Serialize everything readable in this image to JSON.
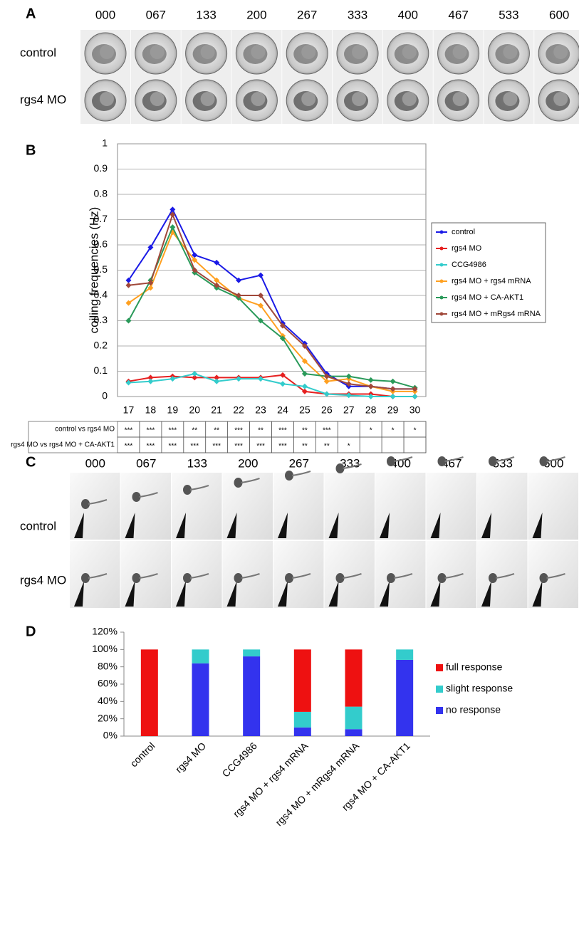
{
  "panel_a": {
    "label": "A",
    "times": [
      "000",
      "067",
      "133",
      "200",
      "267",
      "333",
      "400",
      "467",
      "533",
      "600"
    ],
    "rows": [
      "control",
      "rgs4 MO"
    ]
  },
  "panel_b": {
    "label": "B"
  },
  "panel_c": {
    "label": "C",
    "times": [
      "000",
      "067",
      "133",
      "200",
      "267",
      "333",
      "400",
      "467",
      "533",
      "600"
    ],
    "rows": [
      "control",
      "rgs4 MO"
    ]
  },
  "panel_d": {
    "label": "D"
  },
  "chart_data": [
    {
      "type": "line",
      "y_label": "coiling frequencies (Hz)",
      "categories": [
        17,
        18,
        19,
        20,
        21,
        22,
        23,
        24,
        25,
        26,
        27,
        28,
        29,
        30
      ],
      "ylim": [
        0,
        1
      ],
      "yticks": [
        0,
        0.1,
        0.2,
        0.3,
        0.4,
        0.5,
        0.6,
        0.7,
        0.8,
        0.9,
        1
      ],
      "grid": true,
      "legend": "right",
      "series": [
        {
          "name": "control",
          "color": "#1a1ae6",
          "values": [
            0.46,
            0.59,
            0.74,
            0.56,
            0.53,
            0.46,
            0.48,
            0.29,
            0.21,
            0.09,
            0.04,
            0.04,
            0.03,
            0.03
          ]
        },
        {
          "name": "rgs4 MO",
          "color": "#e62020",
          "values": [
            0.06,
            0.075,
            0.08,
            0.075,
            0.075,
            0.075,
            0.075,
            0.085,
            0.02,
            0.01,
            0.01,
            0.01,
            0.0,
            0.0
          ]
        },
        {
          "name": "CCG4986",
          "color": "#33cccc",
          "values": [
            0.055,
            0.06,
            0.07,
            0.09,
            0.06,
            0.07,
            0.07,
            0.05,
            0.04,
            0.01,
            0.005,
            0.0,
            0.0,
            0.0
          ]
        },
        {
          "name": "rgs4 MO + rgs4 mRNA",
          "color": "#ffa020",
          "values": [
            0.37,
            0.43,
            0.65,
            0.54,
            0.46,
            0.39,
            0.36,
            0.24,
            0.14,
            0.06,
            0.07,
            0.04,
            0.02,
            0.02
          ]
        },
        {
          "name": "rgs4 MO + CA-AKT1",
          "color": "#2a9a5a",
          "values": [
            0.3,
            0.46,
            0.67,
            0.49,
            0.43,
            0.39,
            0.3,
            0.23,
            0.09,
            0.08,
            0.08,
            0.065,
            0.06,
            0.035
          ]
        },
        {
          "name": "rgs4 MO + mRgs4 mRNA",
          "color": "#a0483a",
          "values": [
            0.44,
            0.45,
            0.72,
            0.5,
            0.44,
            0.4,
            0.4,
            0.28,
            0.2,
            0.08,
            0.05,
            0.04,
            0.03,
            0.03
          ]
        }
      ]
    },
    {
      "type": "bar",
      "stacked": true,
      "legend": "right",
      "categories": [
        "control",
        "rgs4 MO",
        "CCG4986",
        "rgs4 MO + rgs4 mRNA",
        "rgs4 MO + mRgs4 mRNA",
        "rgs4 MO + CA-AKT1"
      ],
      "ylim": [
        0,
        120
      ],
      "yticks": [
        {
          "value": 0,
          "label": "0%"
        },
        {
          "value": 20,
          "label": "20%"
        },
        {
          "value": 40,
          "label": "40%"
        },
        {
          "value": 60,
          "label": "60%"
        },
        {
          "value": 80,
          "label": "80%"
        },
        {
          "value": 100,
          "label": "100%"
        },
        {
          "value": 120,
          "label": "120%"
        }
      ],
      "series": [
        {
          "name": "no response",
          "color": "#3333ee",
          "values": [
            0,
            84,
            92,
            10,
            8,
            88
          ]
        },
        {
          "name": "slight response",
          "color": "#33cccc",
          "values": [
            0,
            16,
            8,
            18,
            26,
            12
          ]
        },
        {
          "name": "full response",
          "color": "#ee1111",
          "values": [
            100,
            0,
            0,
            72,
            66,
            0
          ]
        }
      ]
    }
  ],
  "significance_table": {
    "rows": [
      {
        "label": "control vs rgs4 MO",
        "cells": [
          "***",
          "***",
          "***",
          "**",
          "**",
          "***",
          "**",
          "***",
          "**",
          "***",
          null,
          "*",
          "*",
          "*"
        ]
      },
      {
        "label": "rgs4 MO vs rgs4 MO + CA-AKT1",
        "cells": [
          "***",
          "***",
          "***",
          "***",
          "***",
          "***",
          "***",
          "***",
          "**",
          "**",
          "*",
          null,
          null,
          null
        ]
      }
    ]
  }
}
